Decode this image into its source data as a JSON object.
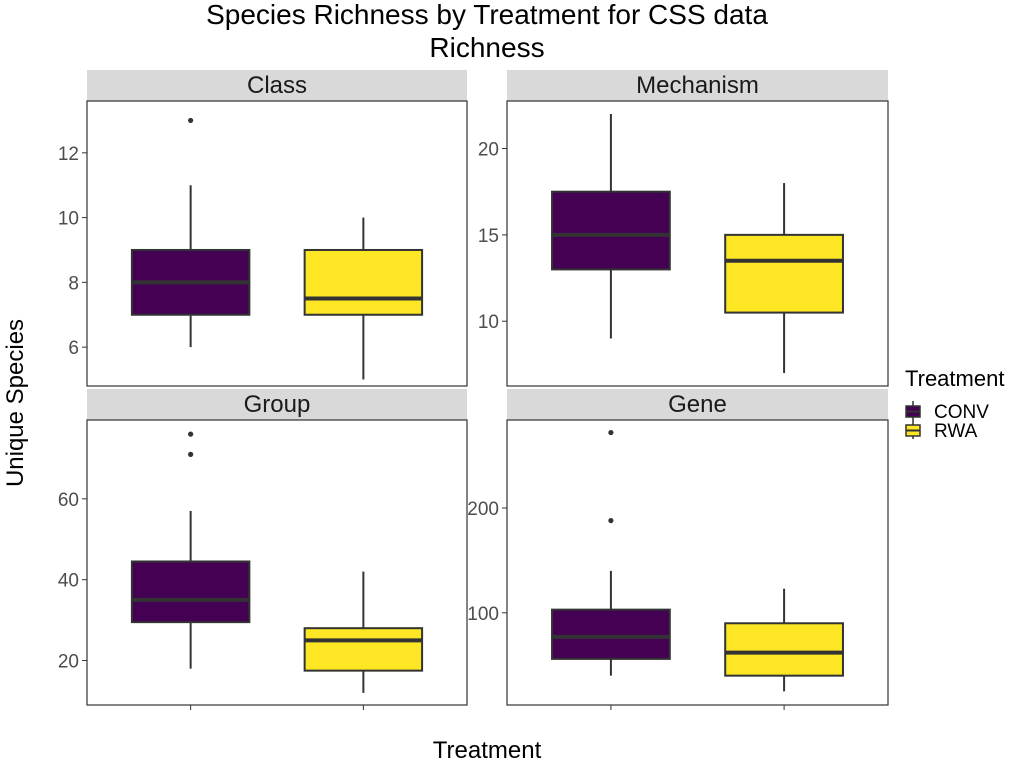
{
  "chart_data": {
    "type": "boxplot",
    "title_lines": [
      "Species Richness by Treatment for CSS data",
      "Richness"
    ],
    "xlabel": "Treatment",
    "ylabel": "Unique Species",
    "legend": {
      "title": "Treatment",
      "placement": "right",
      "entries": [
        {
          "label": "CONV",
          "color": "#440154"
        },
        {
          "label": "RWA",
          "color": "#FDE725"
        }
      ]
    },
    "facets": [
      {
        "label": "Class",
        "ylim": [
          4.8,
          13.6
        ],
        "yticks": [
          6,
          8,
          10,
          12
        ],
        "boxes": [
          {
            "group": "CONV",
            "whisker_low": 6,
            "q1": 7,
            "median": 8,
            "q3": 9,
            "whisker_high": 11,
            "outliers": [
              13
            ]
          },
          {
            "group": "RWA",
            "whisker_low": 5,
            "q1": 7,
            "median": 7.5,
            "q3": 9,
            "whisker_high": 10,
            "outliers": []
          }
        ]
      },
      {
        "label": "Mechanism",
        "ylim": [
          6.25,
          22.75
        ],
        "yticks": [
          10,
          15,
          20
        ],
        "boxes": [
          {
            "group": "CONV",
            "whisker_low": 9,
            "q1": 13,
            "median": 15,
            "q3": 17.5,
            "whisker_high": 22,
            "outliers": []
          },
          {
            "group": "RWA",
            "whisker_low": 7,
            "q1": 10.5,
            "median": 13.5,
            "q3": 15,
            "whisker_high": 18,
            "outliers": []
          }
        ]
      },
      {
        "label": "Group",
        "ylim": [
          9,
          79.5
        ],
        "yticks": [
          20,
          40,
          60
        ],
        "boxes": [
          {
            "group": "CONV",
            "whisker_low": 18,
            "q1": 29.5,
            "median": 35,
            "q3": 44.5,
            "whisker_high": 57,
            "outliers": [
              71,
              76
            ]
          },
          {
            "group": "RWA",
            "whisker_low": 12,
            "q1": 17.5,
            "median": 25,
            "q3": 28,
            "whisker_high": 42,
            "outliers": []
          }
        ]
      },
      {
        "label": "Gene",
        "ylim": [
          12,
          284
        ],
        "yticks": [
          100,
          200
        ],
        "boxes": [
          {
            "group": "CONV",
            "whisker_low": 40,
            "q1": 56,
            "median": 77,
            "q3": 103,
            "whisker_high": 140,
            "outliers": [
              188,
              272
            ]
          },
          {
            "group": "RWA",
            "whisker_low": 25,
            "q1": 40,
            "median": 62,
            "q3": 90,
            "whisker_high": 123,
            "outliers": []
          }
        ]
      }
    ],
    "grid": false
  }
}
